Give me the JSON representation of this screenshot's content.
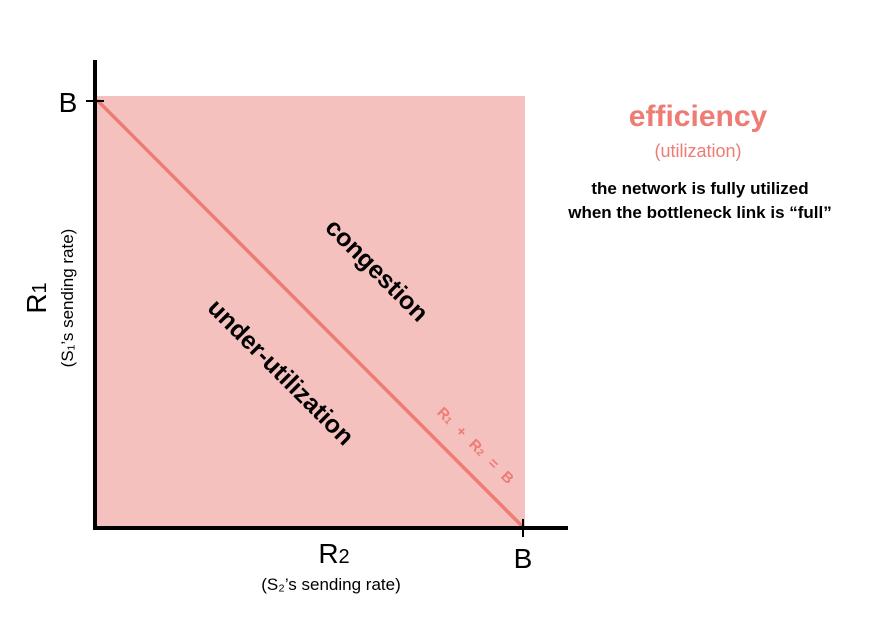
{
  "diagram": {
    "y_axis": {
      "label_main": "R",
      "label_sub": "1",
      "caption": "(S₁’s sending rate)",
      "tick_label": "B"
    },
    "x_axis": {
      "label_main": "R",
      "label_sub": "2",
      "caption": "(S₂’s sending rate)",
      "tick_label": "B"
    },
    "regions": {
      "congestion": "congestion",
      "under_utilization": "under-utilization"
    },
    "line_label": {
      "r1": "R",
      "r1_sub": "1",
      "plus": "+",
      "r2": "R",
      "r2_sub": "2",
      "equals": "=",
      "b": "B"
    },
    "colors": {
      "region_fill": "#f4c1bf",
      "line": "#ee7b74",
      "axis": "#000000"
    }
  },
  "side_panel": {
    "title": "efficiency",
    "subtitle": "(utilization)",
    "description_line1": "the network is fully utilized",
    "description_line2": "when the bottleneck link is “full”"
  }
}
